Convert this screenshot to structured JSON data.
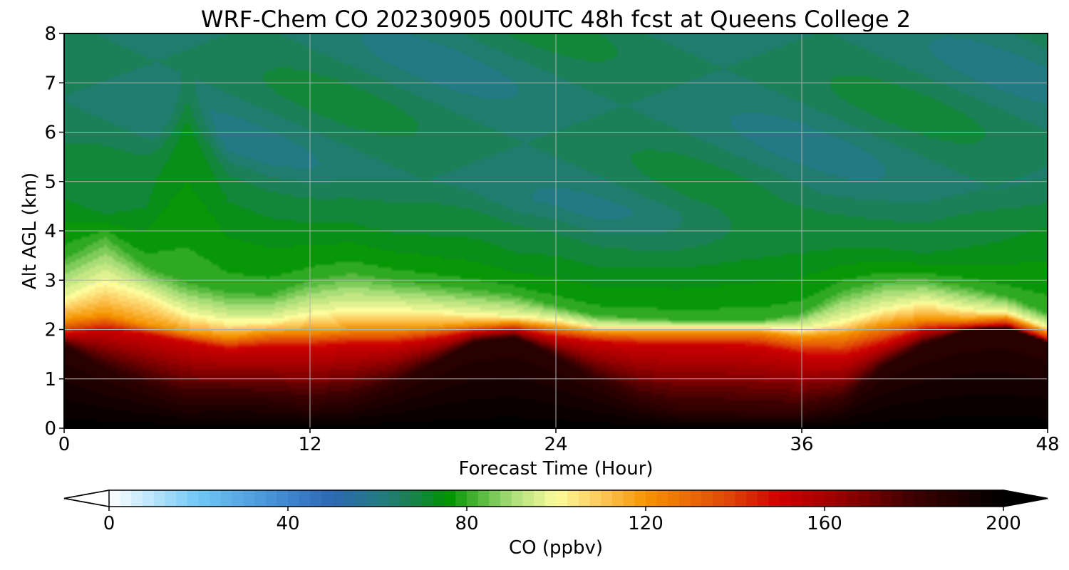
{
  "chart_data": {
    "type": "heatmap",
    "subtype": "filled-contour-time-height",
    "title": "WRF-Chem CO  20230905 00UTC 48h fcst at Queens College 2",
    "xlabel": "Forecast Time (Hour)",
    "ylabel": "Alt AGL (km)",
    "xlim": [
      0,
      48
    ],
    "ylim": [
      0,
      8
    ],
    "xticks": [
      "0",
      "12",
      "24",
      "36",
      "48"
    ],
    "xtick_values": [
      0,
      12,
      24,
      36,
      48
    ],
    "yticks": [
      "0",
      "1",
      "2",
      "3",
      "4",
      "5",
      "6",
      "7",
      "8"
    ],
    "ytick_values": [
      0,
      1,
      2,
      3,
      4,
      5,
      6,
      7,
      8
    ],
    "grid": true,
    "colorbar": {
      "label": "CO  (ppbv)",
      "orientation": "horizontal",
      "placement": "bottom",
      "min": 0,
      "max": 200,
      "ticks": [
        "0",
        "40",
        "80",
        "120",
        "160",
        "200"
      ],
      "tick_values": [
        0,
        40,
        80,
        120,
        160,
        200
      ],
      "extend": "both",
      "under_color": "#ffffff",
      "over_color": "#000000",
      "stops": [
        {
          "v": 0,
          "c": "#ffffff"
        },
        {
          "v": 20,
          "c": "#6fc8f5"
        },
        {
          "v": 40,
          "c": "#3f86d0"
        },
        {
          "v": 50,
          "c": "#2d66b3"
        },
        {
          "v": 60,
          "c": "#237a84"
        },
        {
          "v": 67,
          "c": "#1b8055"
        },
        {
          "v": 76,
          "c": "#009400"
        },
        {
          "v": 90,
          "c": "#a8dd78"
        },
        {
          "v": 100,
          "c": "#fcfc9c"
        },
        {
          "v": 110,
          "c": "#fcc85a"
        },
        {
          "v": 120,
          "c": "#f59400"
        },
        {
          "v": 138,
          "c": "#e04808"
        },
        {
          "v": 150,
          "c": "#cc0000"
        },
        {
          "v": 162,
          "c": "#a00000"
        },
        {
          "v": 180,
          "c": "#3c0000"
        },
        {
          "v": 200,
          "c": "#000000"
        }
      ]
    },
    "x": [
      0,
      2,
      4,
      6,
      8,
      10,
      12,
      14,
      16,
      18,
      20,
      22,
      24,
      26,
      28,
      30,
      32,
      34,
      36,
      38,
      40,
      42,
      44,
      46,
      48
    ],
    "layer_boundaries_km": {
      "black_top": [
        1.7,
        1.2,
        0.85,
        0.55,
        0.6,
        0.55,
        0.45,
        0.55,
        0.85,
        1.3,
        1.75,
        1.85,
        1.45,
        0.95,
        0.55,
        0.35,
        0.35,
        0.3,
        0.3,
        0.5,
        1.25,
        1.7,
        2.0,
        2.05,
        1.75
      ],
      "red_top": [
        1.9,
        2.0,
        1.9,
        1.75,
        1.6,
        1.65,
        1.65,
        1.7,
        1.7,
        1.8,
        1.95,
        2.0,
        1.85,
        1.75,
        1.7,
        1.7,
        1.7,
        1.65,
        1.5,
        1.45,
        1.7,
        2.0,
        2.05,
        2.1,
        1.8
      ],
      "orange_top": [
        2.2,
        2.3,
        2.1,
        1.95,
        1.85,
        1.95,
        1.95,
        2.0,
        2.0,
        2.05,
        2.1,
        2.15,
        2.05,
        1.95,
        1.95,
        1.95,
        1.95,
        1.95,
        1.85,
        1.9,
        2.1,
        2.2,
        2.2,
        2.25,
        1.95
      ],
      "yellow_top": [
        2.6,
        2.95,
        2.7,
        2.3,
        2.15,
        2.15,
        2.3,
        2.4,
        2.4,
        2.35,
        2.3,
        2.25,
        2.2,
        2.05,
        2.05,
        2.05,
        2.05,
        2.05,
        2.0,
        2.15,
        2.4,
        2.55,
        2.4,
        2.35,
        2.05
      ],
      "green_top": [
        3.5,
        3.95,
        3.3,
        3.0,
        2.8,
        2.75,
        3.05,
        3.2,
        3.05,
        2.95,
        2.85,
        2.75,
        2.5,
        2.3,
        2.25,
        2.2,
        2.2,
        2.2,
        2.35,
        2.85,
        3.05,
        3.05,
        2.9,
        2.7,
        2.35
      ],
      "dark_green_top": [
        4.6,
        4.3,
        4.4,
        6.2,
        4.5,
        4.2,
        4.1,
        4.1,
        3.9,
        3.8,
        3.7,
        3.4,
        3.4,
        3.2,
        3.2,
        3.2,
        3.3,
        3.4,
        3.5,
        3.6,
        3.6,
        3.5,
        3.6,
        3.7,
        4.0
      ]
    },
    "layer_co_ppbv": {
      "surface": 200,
      "black_top": 185,
      "red_top": 150,
      "orange_top": 120,
      "yellow_top": 100,
      "green_top": 80,
      "dark_green_top": 72,
      "upper_blue_min": 60,
      "upper_green_max": 70
    }
  }
}
